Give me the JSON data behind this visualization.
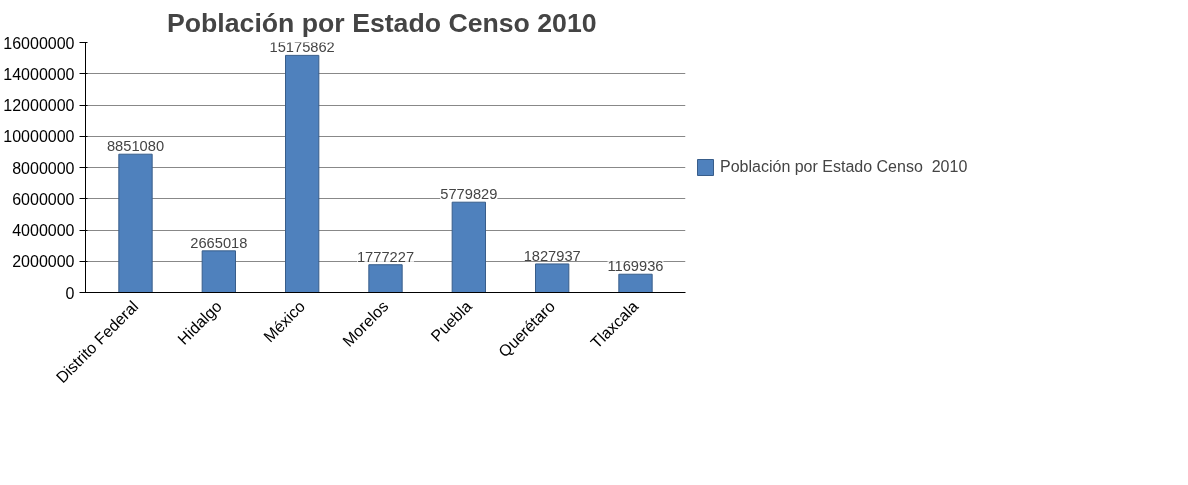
{
  "chart_data": {
    "type": "bar",
    "title": "Población por Estado Censo  2010",
    "categories": [
      "Distrito Federal",
      "Hidalgo",
      "México",
      "Morelos",
      "Puebla",
      "Querétaro",
      "Tlaxcala"
    ],
    "series": [
      {
        "name": "Población por Estado Censo  2010",
        "color": "#4f81bd",
        "values": [
          8851080,
          2665018,
          15175862,
          1777227,
          5779829,
          1827937,
          1169936
        ]
      }
    ],
    "ylim": [
      0,
      16000000
    ],
    "yticks": [
      0,
      2000000,
      4000000,
      6000000,
      8000000,
      10000000,
      12000000,
      14000000,
      16000000
    ],
    "grid": "y",
    "legend": "right",
    "data_labels": true
  }
}
